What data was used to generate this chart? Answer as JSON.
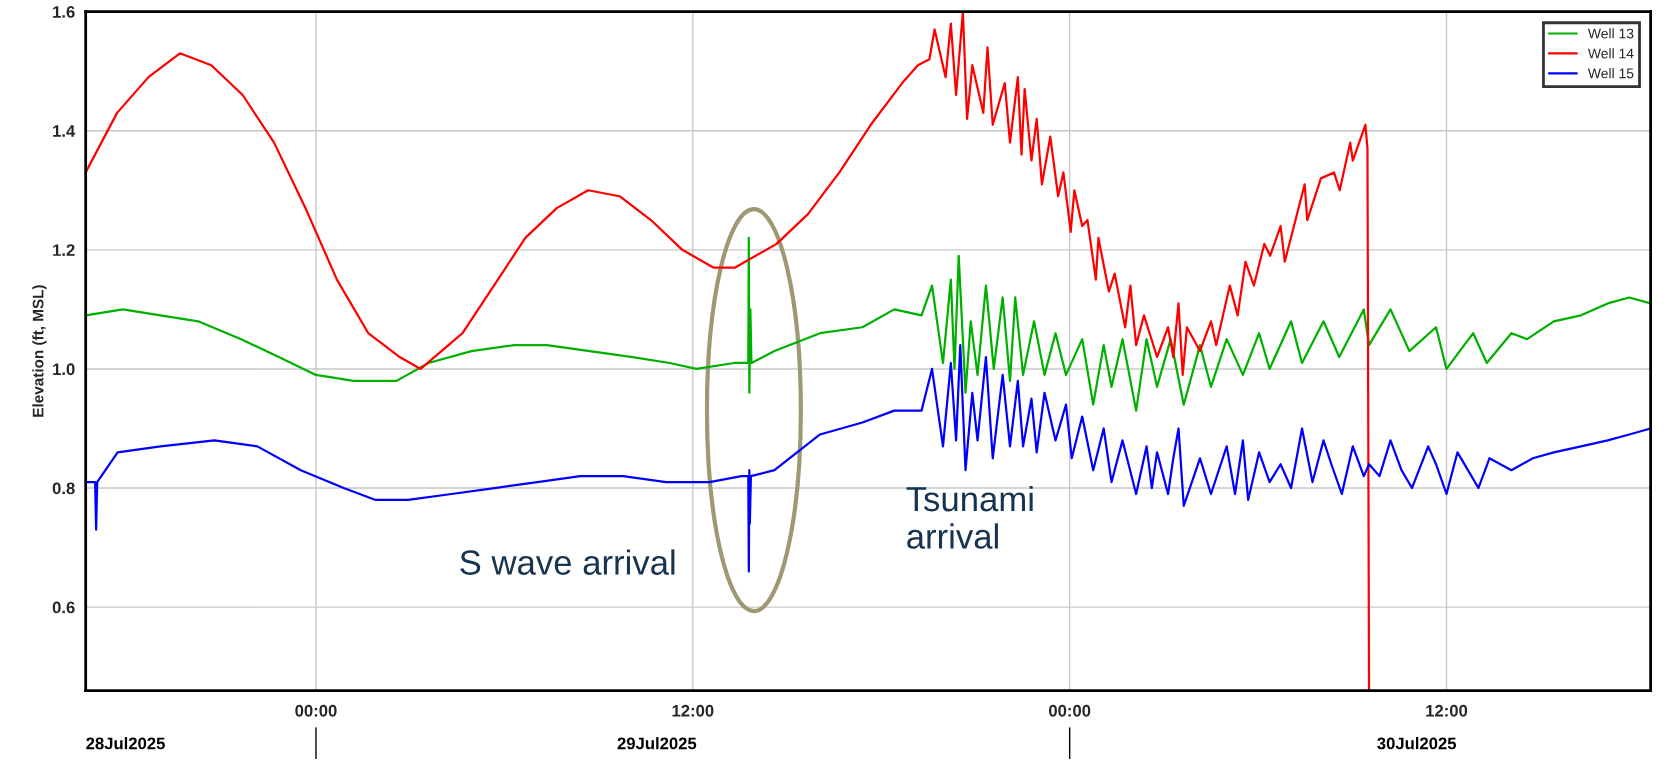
{
  "chart_data": {
    "type": "line",
    "ylabel": "Elevation (ft, MSL)",
    "xlim": [
      "2025-07-28T16:40",
      "2025-07-30T18:30"
    ],
    "ylim": [
      0.46,
      1.6
    ],
    "xticks": [
      {
        "value": "2025-07-29T00:00",
        "label": "00:00"
      },
      {
        "value": "2025-07-29T12:00",
        "label": "12:00"
      },
      {
        "value": "2025-07-30T00:00",
        "label": "00:00"
      },
      {
        "value": "2025-07-30T12:00",
        "label": "12:00"
      }
    ],
    "yticks": [
      {
        "value": 0.6,
        "label": "0.6"
      },
      {
        "value": 0.8,
        "label": "0.8"
      },
      {
        "value": 1.0,
        "label": "1.0"
      },
      {
        "value": 1.2,
        "label": "1.2"
      },
      {
        "value": 1.4,
        "label": "1.4"
      },
      {
        "value": 1.6,
        "label": "1.6"
      }
    ],
    "grid": true,
    "legend": "top right",
    "annotations": [
      "S wave arrival",
      "Tsunami\narrival",
      "28Jul2025",
      "29Jul2025",
      "30Jul2025"
    ],
    "series": [
      {
        "name": "Well 13",
        "color": "#00b000",
        "x": [
          "2025-07-28T16:40",
          "2025-07-28T17:51",
          "2025-07-28T19:03",
          "2025-07-28T20:15",
          "2025-07-28T21:37",
          "2025-07-28T22:49",
          "2025-07-29T00:00",
          "2025-07-29T01:12",
          "2025-07-29T02:34",
          "2025-07-29T03:35",
          "2025-07-29T04:57",
          "2025-07-29T06:19",
          "2025-07-29T07:21",
          "2025-07-29T08:43",
          "2025-07-29T10:05",
          "2025-07-29T11:16",
          "2025-07-29T12:07",
          "2025-07-29T13:19",
          "2025-07-29T13:46",
          "2025-07-29T13:47",
          "2025-07-29T13:48",
          "2025-07-29T13:50",
          "2025-07-29T13:52",
          "2025-07-29T14:36",
          "2025-07-29T16:03",
          "2025-07-29T17:24",
          "2025-07-29T18:25",
          "2025-07-29T19:17",
          "2025-07-29T19:37",
          "2025-07-29T19:58",
          "2025-07-29T20:13",
          "2025-07-29T20:20",
          "2025-07-29T20:28",
          "2025-07-29T20:41",
          "2025-07-29T20:51",
          "2025-07-29T21:04",
          "2025-07-29T21:20",
          "2025-07-29T21:35",
          "2025-07-29T21:52",
          "2025-07-29T22:06",
          "2025-07-29T22:16",
          "2025-07-29T22:31",
          "2025-07-29T22:52",
          "2025-07-29T23:12",
          "2025-07-29T23:33",
          "2025-07-29T23:53",
          "2025-07-30T00:24",
          "2025-07-30T00:45",
          "2025-07-30T01:05",
          "2025-07-30T01:20",
          "2025-07-30T01:41",
          "2025-07-30T02:07",
          "2025-07-30T02:27",
          "2025-07-30T02:47",
          "2025-07-30T03:13",
          "2025-07-30T03:38",
          "2025-07-30T04:09",
          "2025-07-30T04:30",
          "2025-07-30T05:00",
          "2025-07-30T05:31",
          "2025-07-30T06:02",
          "2025-07-30T06:22",
          "2025-07-30T07:03",
          "2025-07-30T07:24",
          "2025-07-30T08:05",
          "2025-07-30T08:35",
          "2025-07-30T09:22",
          "2025-07-30T09:32",
          "2025-07-30T10:13",
          "2025-07-30T10:49",
          "2025-07-30T11:40",
          "2025-07-30T12:00",
          "2025-07-30T12:51",
          "2025-07-30T13:17",
          "2025-07-30T14:04",
          "2025-07-30T14:34",
          "2025-07-30T15:25",
          "2025-07-30T16:17",
          "2025-07-30T17:08",
          "2025-07-30T17:49",
          "2025-07-30T18:30"
        ],
        "values": [
          1.09,
          1.1,
          1.09,
          1.08,
          1.05,
          1.02,
          0.99,
          0.98,
          0.98,
          1.01,
          1.03,
          1.04,
          1.04,
          1.03,
          1.02,
          1.01,
          1.0,
          1.01,
          1.01,
          1.22,
          0.96,
          1.1,
          1.01,
          1.03,
          1.06,
          1.07,
          1.1,
          1.09,
          1.14,
          1.01,
          1.15,
          1.0,
          1.19,
          0.96,
          1.08,
          0.99,
          1.14,
          1.0,
          1.12,
          0.98,
          1.12,
          0.99,
          1.08,
          0.99,
          1.06,
          0.99,
          1.05,
          0.94,
          1.04,
          0.97,
          1.05,
          0.93,
          1.05,
          0.97,
          1.05,
          0.94,
          1.04,
          0.97,
          1.05,
          0.99,
          1.06,
          1.0,
          1.08,
          1.01,
          1.08,
          1.02,
          1.1,
          1.04,
          1.1,
          1.03,
          1.07,
          1.0,
          1.06,
          1.01,
          1.06,
          1.05,
          1.08,
          1.09,
          1.11,
          1.12,
          1.11
        ]
      },
      {
        "name": "Well 14",
        "color": "#ff0000",
        "x": [
          "2025-07-28T16:40",
          "2025-07-28T17:40",
          "2025-07-28T18:40",
          "2025-07-28T19:40",
          "2025-07-28T20:40",
          "2025-07-28T21:40",
          "2025-07-28T22:40",
          "2025-07-28T23:40",
          "2025-07-29T00:40",
          "2025-07-29T01:40",
          "2025-07-29T02:40",
          "2025-07-29T03:20",
          "2025-07-29T04:40",
          "2025-07-29T05:40",
          "2025-07-29T06:40",
          "2025-07-29T07:40",
          "2025-07-29T08:40",
          "2025-07-29T09:40",
          "2025-07-29T10:40",
          "2025-07-29T11:40",
          "2025-07-29T12:40",
          "2025-07-29T13:20",
          "2025-07-29T14:40",
          "2025-07-29T15:40",
          "2025-07-29T16:40",
          "2025-07-29T17:40",
          "2025-07-29T18:40",
          "2025-07-29T19:10",
          "2025-07-29T19:32",
          "2025-07-29T19:42",
          "2025-07-29T20:03",
          "2025-07-29T20:13",
          "2025-07-29T20:23",
          "2025-07-29T20:36",
          "2025-07-29T20:44",
          "2025-07-29T20:54",
          "2025-07-29T21:15",
          "2025-07-29T21:23",
          "2025-07-29T21:33",
          "2025-07-29T21:56",
          "2025-07-29T22:06",
          "2025-07-29T22:21",
          "2025-07-29T22:28",
          "2025-07-29T22:34",
          "2025-07-29T22:47",
          "2025-07-29T22:57",
          "2025-07-29T23:07",
          "2025-07-29T23:23",
          "2025-07-29T23:38",
          "2025-07-29T23:48",
          "2025-07-30T00:02",
          "2025-07-30T00:09",
          "2025-07-30T00:24",
          "2025-07-30T00:34",
          "2025-07-30T00:50",
          "2025-07-30T00:55",
          "2025-07-30T01:15",
          "2025-07-30T01:26",
          "2025-07-30T01:46",
          "2025-07-30T01:56",
          "2025-07-30T02:07",
          "2025-07-30T02:22",
          "2025-07-30T02:47",
          "2025-07-30T03:08",
          "2025-07-30T03:18",
          "2025-07-30T03:28",
          "2025-07-30T03:36",
          "2025-07-30T03:44",
          "2025-07-30T04:09",
          "2025-07-30T04:30",
          "2025-07-30T04:40",
          "2025-07-30T05:06",
          "2025-07-30T05:21",
          "2025-07-30T05:36",
          "2025-07-30T05:52",
          "2025-07-30T06:12",
          "2025-07-30T06:23",
          "2025-07-30T06:43",
          "2025-07-30T06:51",
          "2025-07-30T07:29",
          "2025-07-30T07:34",
          "2025-07-30T08:00",
          "2025-07-30T08:25",
          "2025-07-30T08:36",
          "2025-07-30T08:56",
          "2025-07-30T09:01",
          "2025-07-30T09:25",
          "2025-07-30T09:29",
          "2025-07-30T09:32"
        ],
        "values": [
          1.33,
          1.43,
          1.49,
          1.53,
          1.51,
          1.46,
          1.38,
          1.27,
          1.15,
          1.06,
          1.02,
          1.0,
          1.06,
          1.14,
          1.22,
          1.27,
          1.3,
          1.29,
          1.25,
          1.2,
          1.17,
          1.17,
          1.21,
          1.26,
          1.33,
          1.41,
          1.48,
          1.51,
          1.52,
          1.57,
          1.49,
          1.58,
          1.46,
          1.6,
          1.42,
          1.51,
          1.43,
          1.54,
          1.41,
          1.48,
          1.38,
          1.49,
          1.36,
          1.47,
          1.35,
          1.42,
          1.31,
          1.39,
          1.29,
          1.33,
          1.23,
          1.3,
          1.24,
          1.25,
          1.15,
          1.22,
          1.13,
          1.16,
          1.07,
          1.14,
          1.04,
          1.09,
          1.02,
          1.07,
          1.02,
          1.11,
          0.99,
          1.07,
          1.03,
          1.08,
          1.04,
          1.14,
          1.09,
          1.18,
          1.14,
          1.21,
          1.19,
          1.24,
          1.18,
          1.31,
          1.25,
          1.32,
          1.33,
          1.3,
          1.38,
          1.35,
          1.41,
          1.37,
          0.46
        ]
      },
      {
        "name": "Well 15",
        "color": "#0000ff",
        "x": [
          "2025-07-28T16:40",
          "2025-07-28T16:58",
          "2025-07-28T17:00",
          "2025-07-28T17:02",
          "2025-07-28T17:41",
          "2025-07-28T19:03",
          "2025-07-28T20:46",
          "2025-07-28T22:08",
          "2025-07-28T23:31",
          "2025-07-29T00:53",
          "2025-07-29T01:54",
          "2025-07-29T02:56",
          "2025-07-29T04:19",
          "2025-07-29T05:41",
          "2025-07-29T07:03",
          "2025-07-29T08:25",
          "2025-07-29T09:47",
          "2025-07-29T11:09",
          "2025-07-29T12:32",
          "2025-07-29T13:33",
          "2025-07-29T13:46",
          "2025-07-29T13:47",
          "2025-07-29T13:48",
          "2025-07-29T13:49",
          "2025-07-29T13:51",
          "2025-07-29T14:36",
          "2025-07-29T16:03",
          "2025-07-29T17:24",
          "2025-07-29T18:25",
          "2025-07-29T19:17",
          "2025-07-29T19:37",
          "2025-07-29T19:58",
          "2025-07-29T20:13",
          "2025-07-29T20:23",
          "2025-07-29T20:31",
          "2025-07-29T20:41",
          "2025-07-29T20:54",
          "2025-07-29T21:04",
          "2025-07-29T21:20",
          "2025-07-29T21:33",
          "2025-07-29T21:52",
          "2025-07-29T22:06",
          "2025-07-29T22:21",
          "2025-07-29T22:31",
          "2025-07-29T22:47",
          "2025-07-29T22:57",
          "2025-07-29T23:12",
          "2025-07-29T23:33",
          "2025-07-29T23:53",
          "2025-07-30T00:04",
          "2025-07-30T00:24",
          "2025-07-30T00:45",
          "2025-07-30T01:05",
          "2025-07-30T01:20",
          "2025-07-30T01:41",
          "2025-07-30T02:07",
          "2025-07-30T02:27",
          "2025-07-30T02:37",
          "2025-07-30T02:47",
          "2025-07-30T03:08",
          "2025-07-30T03:18",
          "2025-07-30T03:28",
          "2025-07-30T03:38",
          "2025-07-30T04:09",
          "2025-07-30T04:30",
          "2025-07-30T05:00",
          "2025-07-30T05:16",
          "2025-07-30T05:31",
          "2025-07-30T05:41",
          "2025-07-30T06:02",
          "2025-07-30T06:22",
          "2025-07-30T06:43",
          "2025-07-30T07:03",
          "2025-07-30T07:24",
          "2025-07-30T07:44",
          "2025-07-30T08:05",
          "2025-07-30T08:20",
          "2025-07-30T08:40",
          "2025-07-30T09:01",
          "2025-07-30T09:22",
          "2025-07-30T09:32",
          "2025-07-30T09:52",
          "2025-07-30T10:13",
          "2025-07-30T10:34",
          "2025-07-30T10:54",
          "2025-07-30T11:25",
          "2025-07-30T11:40",
          "2025-07-30T12:00",
          "2025-07-30T12:21",
          "2025-07-30T12:41",
          "2025-07-30T13:01",
          "2025-07-30T13:22",
          "2025-07-30T14:04",
          "2025-07-30T14:45",
          "2025-07-30T15:25",
          "2025-07-30T16:17",
          "2025-07-30T17:08",
          "2025-07-30T17:49",
          "2025-07-30T18:30"
        ],
        "values": [
          0.81,
          0.81,
          0.73,
          0.81,
          0.86,
          0.87,
          0.88,
          0.87,
          0.83,
          0.8,
          0.78,
          0.78,
          0.79,
          0.8,
          0.81,
          0.82,
          0.82,
          0.81,
          0.81,
          0.82,
          0.82,
          0.66,
          0.83,
          0.74,
          0.82,
          0.83,
          0.89,
          0.91,
          0.93,
          0.93,
          1.0,
          0.87,
          1.01,
          0.88,
          1.04,
          0.83,
          0.96,
          0.88,
          1.02,
          0.85,
          0.99,
          0.87,
          0.98,
          0.87,
          0.95,
          0.86,
          0.96,
          0.88,
          0.94,
          0.85,
          0.92,
          0.83,
          0.9,
          0.81,
          0.88,
          0.79,
          0.87,
          0.8,
          0.86,
          0.79,
          0.85,
          0.9,
          0.77,
          0.85,
          0.79,
          0.87,
          0.79,
          0.88,
          0.78,
          0.86,
          0.81,
          0.84,
          0.8,
          0.9,
          0.81,
          0.88,
          0.84,
          0.79,
          0.87,
          0.82,
          0.84,
          0.82,
          0.88,
          0.83,
          0.8,
          0.87,
          0.84,
          0.79,
          0.86,
          0.83,
          0.8,
          0.85,
          0.83,
          0.85,
          0.86,
          0.87,
          0.88,
          0.89,
          0.9
        ]
      }
    ]
  }
}
